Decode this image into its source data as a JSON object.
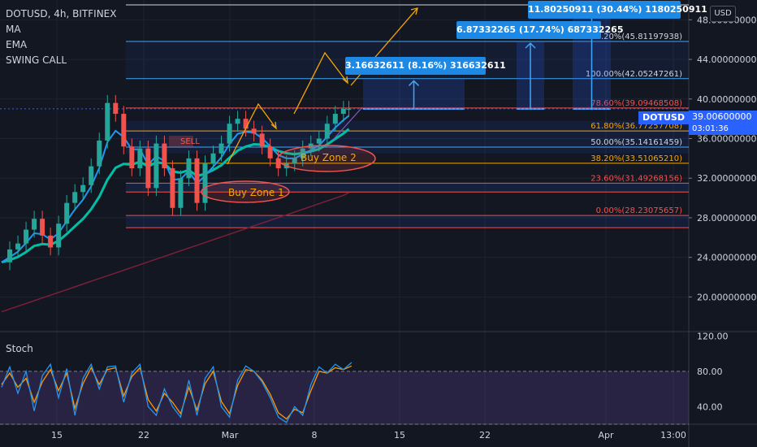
{
  "legend": {
    "symbol": "DOTUSD, 4h, BITFINEX",
    "ma": "MA",
    "ema": "EMA",
    "swing": "SWING CALL"
  },
  "stoch_label": "Stoch",
  "currency_button": "USD",
  "ticker_tag": "DOTUSD",
  "current_price": "39.00600000",
  "countdown": "03:01:36",
  "measure_boxes": {
    "m1": "3.16632611 (8.16%) 316632611",
    "m2": "6.87332265 (17.74%) 687332265",
    "m3": "11.80250911 (30.44%) 1180250911"
  },
  "annotations": {
    "sell": "SELL",
    "buy1": "Buy Zone 1",
    "buy2": "Buy Zone 2"
  },
  "colors": {
    "background": "#131722",
    "up_candle": "#26a69a",
    "down_candle": "#ef5350",
    "ema_fast": "#2196f3",
    "ema_slow": "#00bfa5",
    "ma_long": "#7b1f3a",
    "accent": "#2962ff",
    "orange": "#f7a600",
    "stoch_k": "#2196f3",
    "stoch_d": "#ff9800"
  },
  "chart_data": {
    "type": "line",
    "title": "DOTUSD, 4h, BITFINEX",
    "price_axis": {
      "range": [
        16.5,
        50
      ],
      "ticks": [
        "48.00000000",
        "44.00000000",
        "40.00000000",
        "36.00000000",
        "32.00000000",
        "28.00000000",
        "24.00000000",
        "20.00000000"
      ]
    },
    "time_axis": {
      "labels": [
        "15",
        "22",
        "Mar",
        "8",
        "15",
        "22",
        "Apr",
        "13:00"
      ]
    },
    "price_series": {
      "x": [
        0,
        3,
        6,
        9,
        12,
        15,
        18,
        21,
        24,
        27,
        30,
        33,
        36,
        39,
        42,
        45,
        48,
        51,
        54,
        57,
        60,
        63,
        66,
        69,
        72,
        75,
        78,
        81,
        84,
        87,
        90,
        93,
        96,
        99,
        102,
        105,
        108,
        111,
        114,
        117,
        120,
        123,
        126,
        128
      ],
      "y": [
        23.5,
        24.8,
        25.4,
        26.8,
        27.9,
        26.2,
        25.0,
        27.4,
        29.5,
        30.6,
        31.3,
        33.2,
        35.8,
        39.6,
        38.5,
        35.2,
        33.0,
        35.0,
        31.0,
        35.5,
        33.0,
        29.0,
        32.0,
        34.0,
        29.5,
        33.5,
        34.5,
        35.5,
        37.5,
        38.0,
        37.0,
        36.5,
        35.2,
        34.0,
        33.0,
        33.5,
        34.0,
        35.0,
        35.5,
        36.0,
        37.5,
        38.5,
        39.0,
        39.0
      ]
    },
    "fib_levels": [
      {
        "label": "0.00%(28.23075657)",
        "value": 28.23075657
      },
      {
        "label": "23.60%(31.49268156)",
        "value": 31.49268156
      },
      {
        "label": "38.20%(33.51065210)",
        "value": 33.5106521
      },
      {
        "label": "50.00%(35.14161459)",
        "value": 35.14161459
      },
      {
        "label": "61.80%(36.77257708)",
        "value": 36.77257708
      },
      {
        "label": "78.60%(39.09468508)",
        "value": 39.09468508
      },
      {
        "label": "100.00%(42.05247261)",
        "value": 42.05247261
      },
      {
        "label": "127.20%(45.81197938)",
        "value": 45.81197938
      }
    ],
    "stoch": {
      "range": [
        20,
        125
      ],
      "ticks": [
        "120.00",
        "80.00",
        "40.00"
      ],
      "k": [
        62,
        85,
        55,
        80,
        35,
        75,
        88,
        50,
        83,
        30,
        72,
        88,
        60,
        85,
        86,
        45,
        78,
        88,
        40,
        30,
        60,
        40,
        28,
        70,
        30,
        72,
        85,
        40,
        28,
        70,
        86,
        80,
        68,
        50,
        28,
        22,
        40,
        30,
        65,
        85,
        78,
        88,
        82,
        90
      ],
      "d": [
        65,
        78,
        62,
        72,
        45,
        68,
        82,
        58,
        78,
        38,
        66,
        84,
        65,
        82,
        84,
        52,
        74,
        84,
        48,
        35,
        55,
        45,
        32,
        62,
        36,
        66,
        80,
        46,
        32,
        64,
        82,
        80,
        70,
        54,
        33,
        26,
        37,
        33,
        58,
        80,
        78,
        84,
        82,
        86
      ]
    }
  }
}
